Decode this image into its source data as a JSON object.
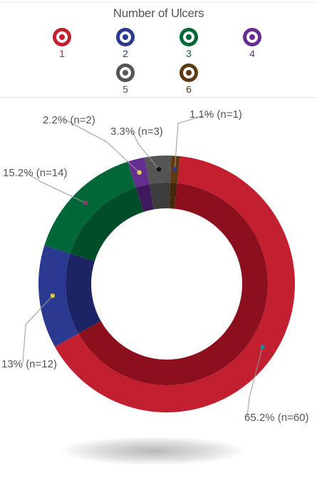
{
  "legend": {
    "title": "Number of Ulcers",
    "items": [
      {
        "label": "1",
        "color": "#c21f30"
      },
      {
        "label": "2",
        "color": "#2b3990"
      },
      {
        "label": "3",
        "color": "#006838"
      },
      {
        "label": "4",
        "color": "#662d91"
      },
      {
        "label": "5",
        "color": "#555555"
      },
      {
        "label": "6",
        "color": "#603913"
      }
    ]
  },
  "chart_data": {
    "type": "pie",
    "variant": "donut",
    "title": "Number of Ulcers",
    "slices": [
      {
        "category": "1",
        "percent": 65.2,
        "n": 60,
        "label": "65.2% (n=60)",
        "color": "#c21f30",
        "inner_color": "#8c0f1e",
        "marker_color": "#1a8a9c"
      },
      {
        "category": "2",
        "percent": 13.0,
        "n": 12,
        "label": "13% (n=12)",
        "color": "#2b3990",
        "inner_color": "#1c2466",
        "marker_color": "#d4c93a"
      },
      {
        "category": "3",
        "percent": 15.2,
        "n": 14,
        "label": "15.2% (n=14)",
        "color": "#006838",
        "inner_color": "#004d29",
        "marker_color": "#8a3d6e"
      },
      {
        "category": "4",
        "percent": 2.2,
        "n": 2,
        "label": "2.2% (n=2)",
        "color": "#662d91",
        "inner_color": "#3e1a5c",
        "marker_color": "#e0d84a"
      },
      {
        "category": "5",
        "percent": 3.3,
        "n": 3,
        "label": "3.3% (n=3)",
        "color": "#555555",
        "inner_color": "#3c3c3c",
        "marker_color": "#111111"
      },
      {
        "category": "6",
        "percent": 1.1,
        "n": 1,
        "label": "1.1% (n=1)",
        "color": "#603913",
        "inner_color": "#45280c",
        "marker_color": "#2b3990"
      }
    ]
  }
}
